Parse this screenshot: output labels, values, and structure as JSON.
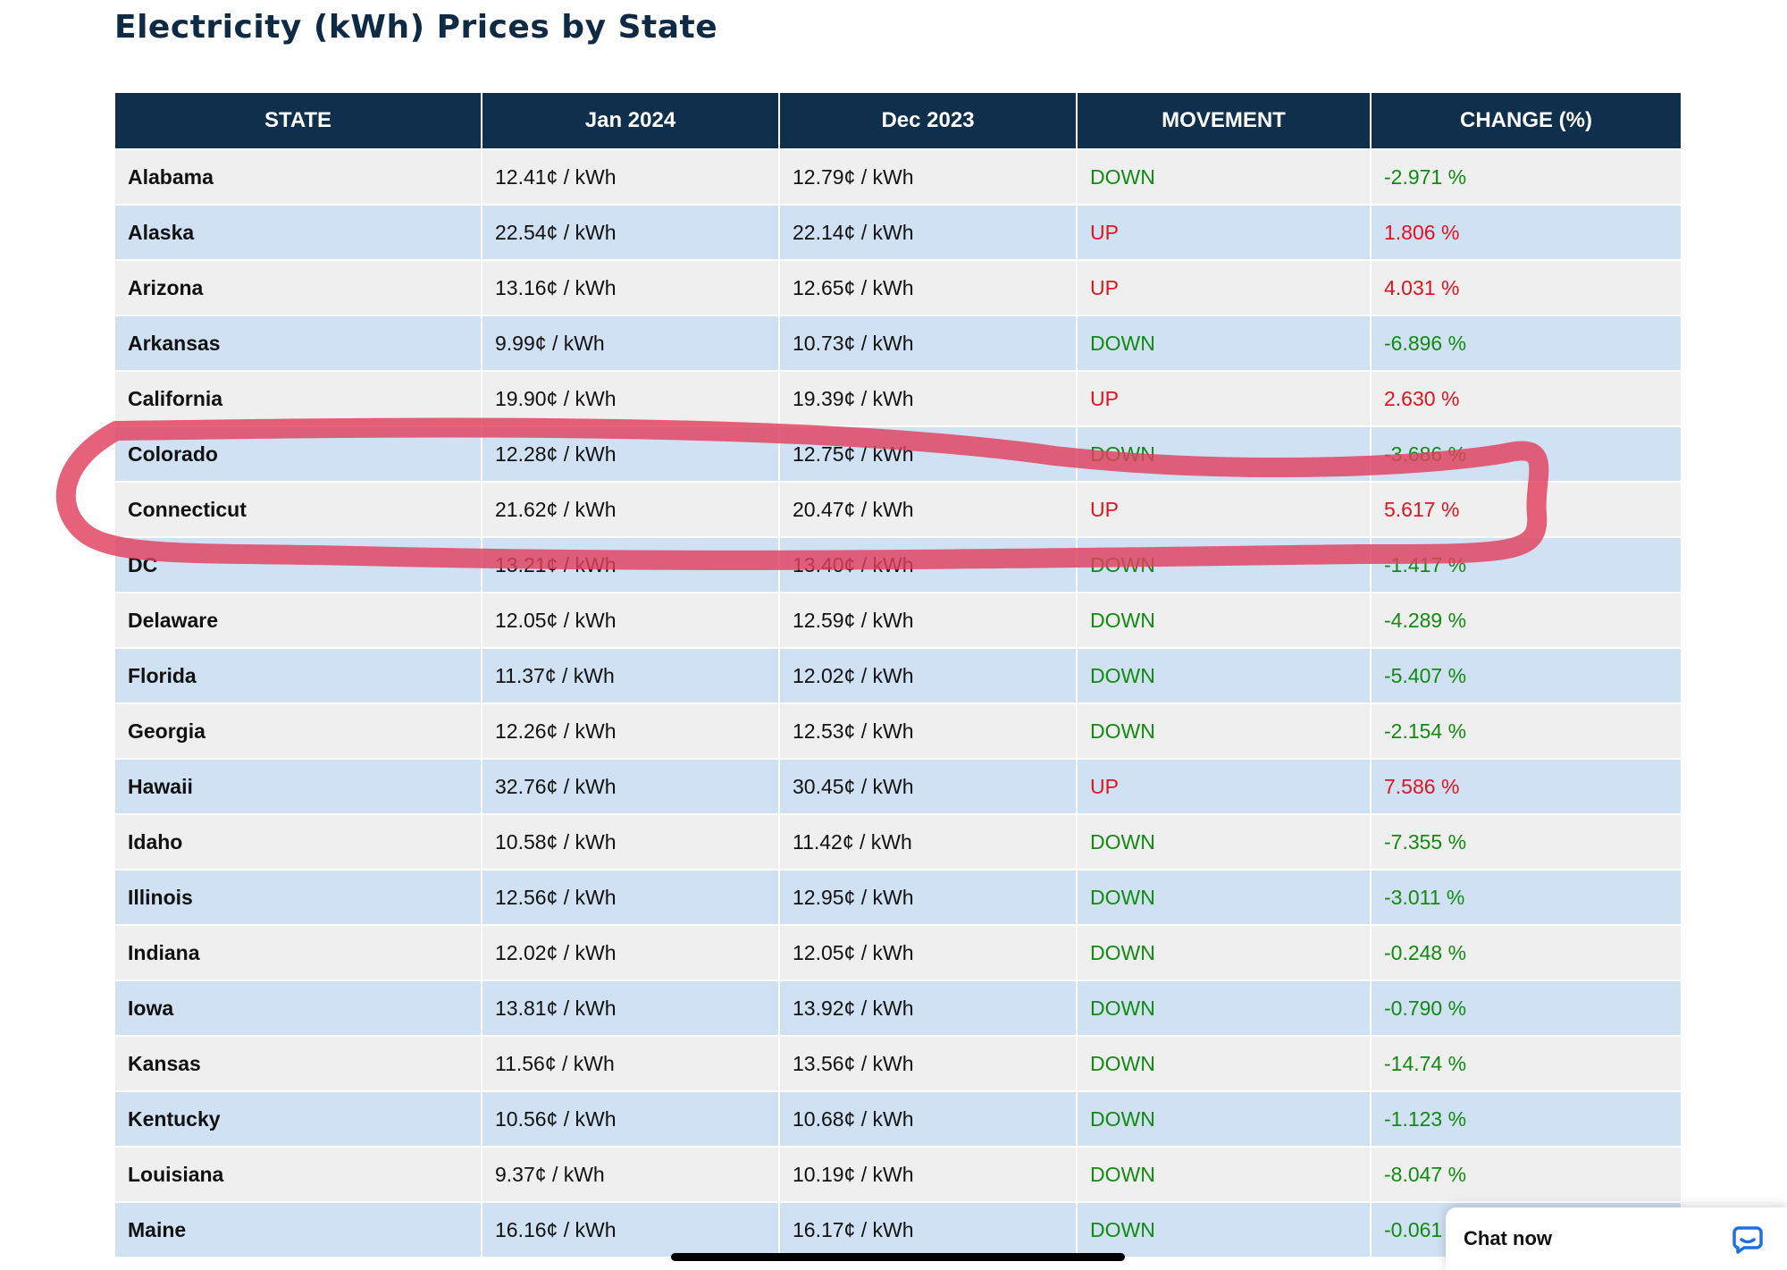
{
  "page": {
    "title": "Electricity (kWh) Prices by State"
  },
  "table": {
    "headers": [
      "STATE",
      "Jan 2024",
      "Dec 2023",
      "MOVEMENT",
      "CHANGE (%)"
    ],
    "rows": [
      {
        "state": "Alabama",
        "jan": "12.41¢ / kWh",
        "dec": "12.79¢ / kWh",
        "movement": "DOWN",
        "change": "-2.971 %"
      },
      {
        "state": "Alaska",
        "jan": "22.54¢ / kWh",
        "dec": "22.14¢ / kWh",
        "movement": "UP",
        "change": "1.806 %"
      },
      {
        "state": "Arizona",
        "jan": "13.16¢ / kWh",
        "dec": "12.65¢ / kWh",
        "movement": "UP",
        "change": "4.031 %"
      },
      {
        "state": "Arkansas",
        "jan": "9.99¢ / kWh",
        "dec": "10.73¢ / kWh",
        "movement": "DOWN",
        "change": "-6.896 %"
      },
      {
        "state": "California",
        "jan": "19.90¢ / kWh",
        "dec": "19.39¢ / kWh",
        "movement": "UP",
        "change": "2.630 %"
      },
      {
        "state": "Colorado",
        "jan": "12.28¢ / kWh",
        "dec": "12.75¢ / kWh",
        "movement": "DOWN",
        "change": "-3.686 %"
      },
      {
        "state": "Connecticut",
        "jan": "21.62¢ / kWh",
        "dec": "20.47¢ / kWh",
        "movement": "UP",
        "change": "5.617 %"
      },
      {
        "state": "DC",
        "jan": "13.21¢ / kWh",
        "dec": "13.40¢ / kWh",
        "movement": "DOWN",
        "change": "-1.417 %"
      },
      {
        "state": "Delaware",
        "jan": "12.05¢ / kWh",
        "dec": "12.59¢ / kWh",
        "movement": "DOWN",
        "change": "-4.289 %"
      },
      {
        "state": "Florida",
        "jan": "11.37¢ / kWh",
        "dec": "12.02¢ / kWh",
        "movement": "DOWN",
        "change": "-5.407 %"
      },
      {
        "state": "Georgia",
        "jan": "12.26¢ / kWh",
        "dec": "12.53¢ / kWh",
        "movement": "DOWN",
        "change": "-2.154 %"
      },
      {
        "state": "Hawaii",
        "jan": "32.76¢ / kWh",
        "dec": "30.45¢ / kWh",
        "movement": "UP",
        "change": "7.586 %"
      },
      {
        "state": "Idaho",
        "jan": "10.58¢ / kWh",
        "dec": "11.42¢ / kWh",
        "movement": "DOWN",
        "change": "-7.355 %"
      },
      {
        "state": "Illinois",
        "jan": "12.56¢ / kWh",
        "dec": "12.95¢ / kWh",
        "movement": "DOWN",
        "change": "-3.011 %"
      },
      {
        "state": "Indiana",
        "jan": "12.02¢ / kWh",
        "dec": "12.05¢ / kWh",
        "movement": "DOWN",
        "change": "-0.248 %"
      },
      {
        "state": "Iowa",
        "jan": "13.81¢ / kWh",
        "dec": "13.92¢ / kWh",
        "movement": "DOWN",
        "change": "-0.790 %"
      },
      {
        "state": "Kansas",
        "jan": "11.56¢ / kWh",
        "dec": "13.56¢ / kWh",
        "movement": "DOWN",
        "change": "-14.74 %"
      },
      {
        "state": "Kentucky",
        "jan": "10.56¢ / kWh",
        "dec": "10.68¢ / kWh",
        "movement": "DOWN",
        "change": "-1.123 %"
      },
      {
        "state": "Louisiana",
        "jan": "9.37¢ / kWh",
        "dec": "10.19¢ / kWh",
        "movement": "DOWN",
        "change": "-8.047 %"
      },
      {
        "state": "Maine",
        "jan": "16.16¢ / kWh",
        "dec": "16.17¢ / kWh",
        "movement": "DOWN",
        "change": "-0.061"
      }
    ]
  },
  "chat": {
    "label": "Chat now",
    "icon": "chat-bubble-icon"
  },
  "colors": {
    "header_bg": "#0f2f4c",
    "row_odd": "#efefef",
    "row_even": "#cfe1f3",
    "up": "#e0141e",
    "down": "#128a12",
    "annotation": "#e0405e",
    "chat_icon": "#1f6fe0"
  }
}
